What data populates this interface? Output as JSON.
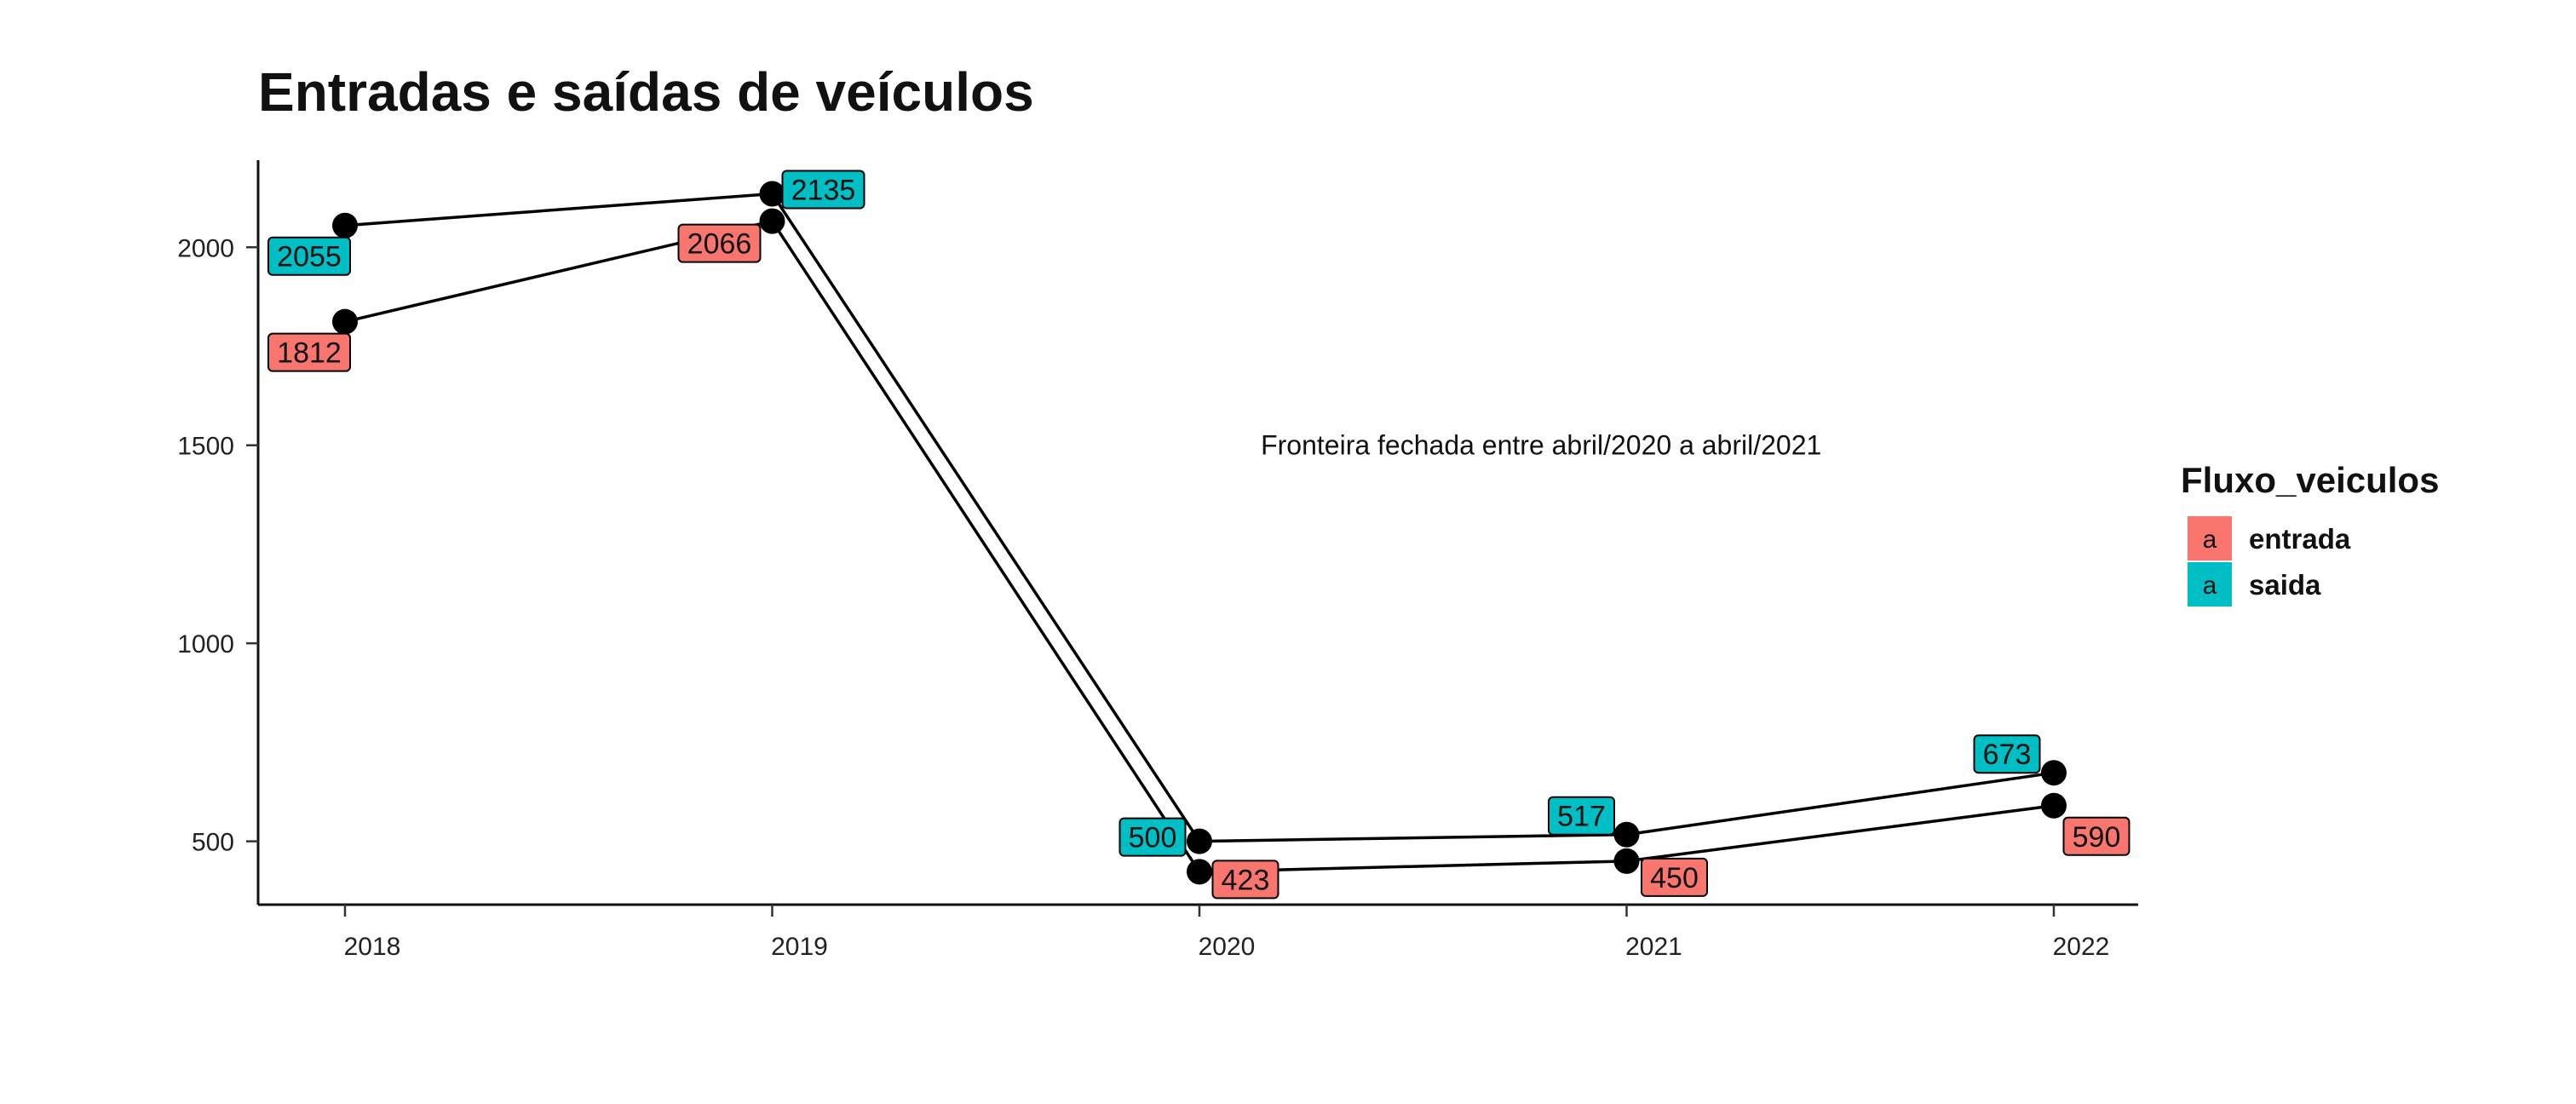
{
  "chart_data": {
    "type": "line",
    "title": "Entradas e saídas de veículos",
    "xlabel": "",
    "ylabel": "",
    "x": [
      "2018",
      "2019",
      "2020",
      "2021",
      "2022"
    ],
    "y_ticks": [
      500,
      1000,
      1500,
      2000
    ],
    "ylim": [
      340,
      2220
    ],
    "grid": false,
    "legend": {
      "title": "Fluxo_veiculos",
      "position": "right",
      "key_glyph": "a"
    },
    "series": [
      {
        "name": "entrada",
        "color": "#F8766D",
        "values": [
          1812,
          2066,
          423,
          450,
          590
        ]
      },
      {
        "name": "saida",
        "color": "#00BFC4",
        "values": [
          2055,
          2135,
          500,
          517,
          673
        ]
      }
    ],
    "annotations": [
      {
        "text": "Fronteira fechada entre abril/2020 a abril/2021",
        "x": 2020.8,
        "y": 1500
      }
    ]
  }
}
